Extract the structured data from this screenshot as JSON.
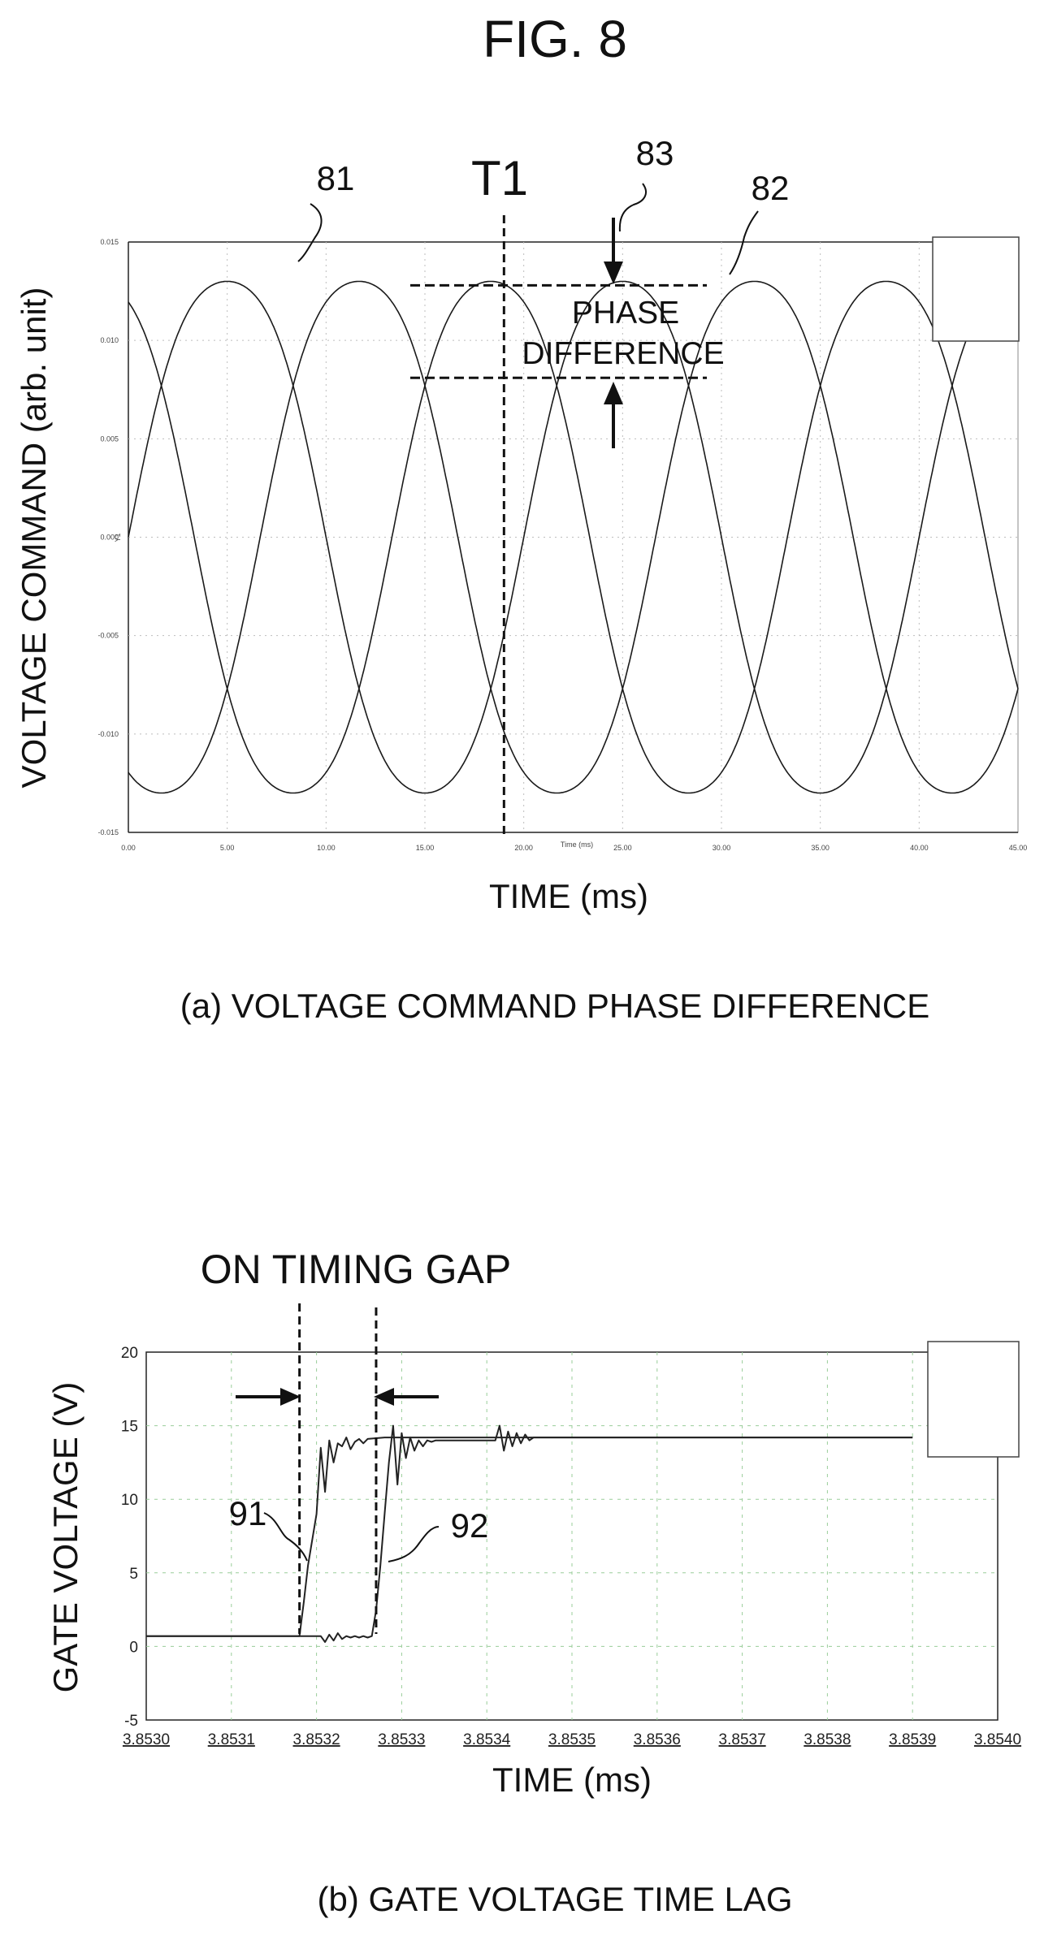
{
  "figure": {
    "title": "FIG. 8",
    "caption_a": "(a) VOLTAGE COMMAND PHASE DIFFERENCE",
    "caption_b": "(b) GATE VOLTAGE TIME LAG"
  },
  "chart_data": [
    {
      "type": "line",
      "panel": "a",
      "ylabel": "VOLTAGE COMMAND (arb. unit)",
      "xlabel": "TIME (ms)",
      "inner_xlabel": "Time (ms)",
      "inner_ylabel": "Y1",
      "xlim": [
        0,
        45
      ],
      "ylim": [
        -0.015,
        0.015
      ],
      "x_ticks": [
        "0.00",
        "5.00",
        "10.00",
        "15.00",
        "20.00",
        "25.00",
        "30.00",
        "35.00",
        "40.00",
        "45.00"
      ],
      "y_ticks": [
        "0.015",
        "0.010",
        "0.005",
        "0.000",
        "-0.005",
        "-0.010",
        "-0.015"
      ],
      "grid": true,
      "legend": "top-right",
      "period_ms": 20,
      "series": [
        {
          "ref": "81",
          "amplitude": 0.0138,
          "phase_deg": 0,
          "third_harmonic": 0.0008
        },
        {
          "ref": "82",
          "amplitude": 0.0138,
          "phase_deg": -120,
          "third_harmonic": 0.0008
        },
        {
          "ref": "83",
          "amplitude": 0.0138,
          "phase_deg": 120,
          "third_harmonic": 0.0008
        }
      ],
      "annotations": {
        "marker": "T1",
        "marker_x": 19,
        "phase_label_1": "PHASE",
        "phase_label_2": "DIFFERENCE",
        "phase_upper_y": 0.0128,
        "phase_lower_y": 0.0081,
        "label_81": "81",
        "label_82": "82",
        "label_83": "83"
      }
    },
    {
      "type": "line",
      "panel": "b",
      "ylabel": "GATE VOLTAGE (V)",
      "xlabel": "TIME (ms)",
      "xlim": [
        3.853,
        3.854
      ],
      "ylim": [
        -5,
        20
      ],
      "x_ticks": [
        "3.8530",
        "3.8531",
        "3.8532",
        "3.8533",
        "3.8534",
        "3.8535",
        "3.8536",
        "3.8537",
        "3.8538",
        "3.8539",
        "3.8540"
      ],
      "y_ticks": [
        "20",
        "15",
        "10",
        "5",
        "0",
        "-5"
      ],
      "grid": true,
      "legend": "top-right",
      "series": [
        {
          "ref": "91",
          "x": [
            3.853,
            3.85318,
            3.853185,
            3.85319,
            3.8532,
            3.853205,
            3.85321,
            3.853215,
            3.85322,
            3.853225,
            3.85323,
            3.853235,
            3.85324,
            3.853245,
            3.85325,
            3.853255,
            3.85326,
            3.85328,
            3.853295,
            3.85331,
            3.853325,
            3.85334,
            3.8534,
            3.8535,
            3.8539
          ],
          "y": [
            0.7,
            0.7,
            3.0,
            5.5,
            9.0,
            13.5,
            10.5,
            14.0,
            12.5,
            13.8,
            13.6,
            14.2,
            13.4,
            13.9,
            14.1,
            13.8,
            14.1,
            14.2,
            14.2,
            14.2,
            14.2,
            14.2,
            14.2,
            14.2,
            14.2
          ]
        },
        {
          "ref": "92",
          "x": [
            3.853,
            3.853205,
            3.85321,
            3.853215,
            3.85322,
            3.853225,
            3.85323,
            3.853235,
            3.85324,
            3.853245,
            3.85325,
            3.853255,
            3.85326,
            3.853265,
            3.85327,
            3.853275,
            3.85328,
            3.853285,
            3.85329,
            3.853295,
            3.8533,
            3.853305,
            3.85331,
            3.853315,
            3.85332,
            3.853325,
            3.85333,
            3.853335,
            3.85334,
            3.85341,
            3.853415,
            3.85342,
            3.853425,
            3.85343,
            3.853435,
            3.85344,
            3.853445,
            3.85345,
            3.853455,
            3.8535,
            3.8539
          ],
          "y": [
            0.7,
            0.7,
            0.3,
            0.8,
            0.4,
            0.9,
            0.5,
            0.7,
            0.6,
            0.7,
            0.6,
            0.7,
            0.6,
            0.7,
            2.5,
            5.5,
            9.0,
            12.5,
            15.0,
            11.0,
            14.5,
            12.8,
            14.2,
            13.3,
            14.0,
            13.6,
            14.0,
            13.9,
            14.0,
            14.0,
            15.0,
            13.3,
            14.6,
            13.6,
            14.5,
            13.8,
            14.4,
            14.0,
            14.2,
            14.2,
            14.2
          ]
        }
      ],
      "annotations": {
        "gap_label": "ON TIMING GAP",
        "gap_start": 3.85318,
        "gap_end": 3.85327,
        "label_91": "91",
        "label_92": "92"
      }
    }
  ]
}
